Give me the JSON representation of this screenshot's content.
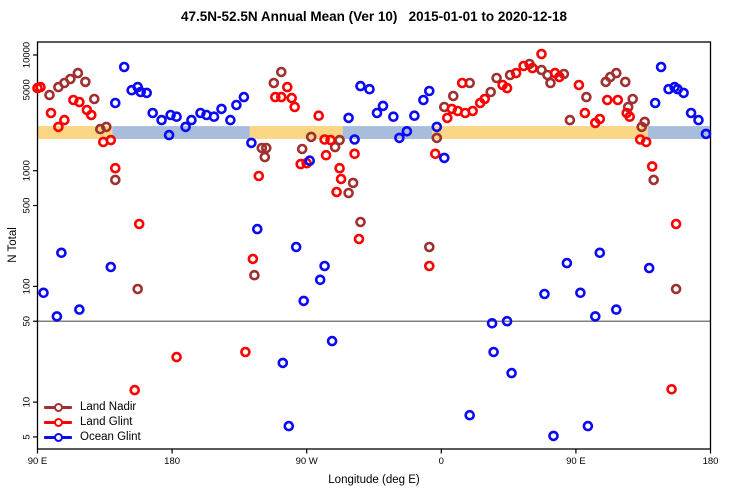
{
  "chart_data": {
    "type": "scatter",
    "title": "47.5N-52.5N Annual Mean (Ver 10)   2015-01-01 to 2020-12-18",
    "xlabel": "Longitude (deg E)",
    "ylabel": "N Total",
    "x_axis": {
      "range_deg": [
        90,
        540
      ],
      "ticks": [
        {
          "deg": 90,
          "label": "90 E"
        },
        {
          "deg": 180,
          "label": "180"
        },
        {
          "deg": 270,
          "label": "90 W"
        },
        {
          "deg": 360,
          "label": "0"
        },
        {
          "deg": 450,
          "label": "90 E"
        },
        {
          "deg": 540,
          "label": "180"
        }
      ]
    },
    "y_axis": {
      "scale": "log",
      "limits": [
        4,
        13000
      ],
      "ticks": [
        {
          "value": 10000,
          "label": "10000"
        },
        {
          "value": 5000,
          "label": "5000"
        },
        {
          "value": 1000,
          "label": "1000"
        },
        {
          "value": 500,
          "label": "500"
        },
        {
          "value": 100,
          "label": "100"
        },
        {
          "value": 50,
          "label": "50"
        },
        {
          "value": 10,
          "label": "10"
        },
        {
          "value": 5,
          "label": "5"
        }
      ]
    },
    "reference_line": {
      "n": 50,
      "color": "#808080"
    },
    "surface_band": {
      "n_range": [
        1880,
        2430
      ],
      "land_color": "#FAD685",
      "ocean_color": "#A8BDDB",
      "segments": [
        {
          "from": 90,
          "to": 140,
          "surface": "land"
        },
        {
          "from": 140,
          "to": 232,
          "surface": "ocean"
        },
        {
          "from": 232,
          "to": 294,
          "surface": "land"
        },
        {
          "from": 294,
          "to": 354,
          "surface": "ocean"
        },
        {
          "from": 354,
          "to": 498,
          "surface": "land"
        },
        {
          "from": 498,
          "to": 540,
          "surface": "ocean"
        }
      ]
    },
    "series": [
      {
        "name": "Land Nadir",
        "color": "#A03030",
        "points": [
          [
            98,
            4510
          ],
          [
            104,
            5280
          ],
          [
            108,
            5730
          ],
          [
            112,
            6200
          ],
          [
            117,
            6980
          ],
          [
            122,
            5850
          ],
          [
            128,
            4170
          ],
          [
            132,
            2290
          ],
          [
            136,
            2390
          ],
          [
            142,
            832
          ],
          [
            248,
            5730
          ],
          [
            253,
            7130
          ],
          [
            240,
            1570
          ],
          [
            243,
            1570
          ],
          [
            242,
            1310
          ],
          [
            267,
            1540
          ],
          [
            273,
            1960
          ],
          [
            289,
            1600
          ],
          [
            292,
            1840
          ],
          [
            298,
            641
          ],
          [
            301,
            784
          ],
          [
            357,
            1920
          ],
          [
            362,
            3550
          ],
          [
            368,
            4420
          ],
          [
            379,
            5730
          ],
          [
            393,
            4790
          ],
          [
            397,
            6330
          ],
          [
            406,
            6710
          ],
          [
            419,
            8360
          ],
          [
            427,
            7420
          ],
          [
            431,
            6710
          ],
          [
            433,
            5730
          ],
          [
            442,
            6850
          ],
          [
            446,
            2740
          ],
          [
            457,
            4330
          ],
          [
            470,
            5860
          ],
          [
            473,
            6450
          ],
          [
            477,
            6980
          ],
          [
            483,
            5860
          ],
          [
            485,
            3550
          ],
          [
            488,
            4170
          ],
          [
            494,
            2390
          ],
          [
            496,
            2640
          ],
          [
            502,
            832
          ],
          [
            157,
            95
          ],
          [
            235,
            125
          ],
          [
            306,
            360
          ],
          [
            352,
            219
          ],
          [
            517,
            95
          ]
        ]
      },
      {
        "name": "Land Glint",
        "color": "#FF0000",
        "points": [
          [
            90,
            5170
          ],
          [
            92,
            5280
          ],
          [
            99,
            3150
          ],
          [
            104,
            2390
          ],
          [
            108,
            2740
          ],
          [
            114,
            4080
          ],
          [
            118,
            3920
          ],
          [
            123,
            3350
          ],
          [
            126,
            3030
          ],
          [
            134,
            1770
          ],
          [
            139,
            1840
          ],
          [
            142,
            1050
          ],
          [
            238,
            900
          ],
          [
            249,
            4330
          ],
          [
            253,
            4330
          ],
          [
            257,
            5280
          ],
          [
            260,
            4240
          ],
          [
            262,
            3550
          ],
          [
            266,
            1140
          ],
          [
            270,
            1160
          ],
          [
            278,
            2990
          ],
          [
            282,
            1860
          ],
          [
            283,
            1360
          ],
          [
            286,
            1840
          ],
          [
            290,
            655
          ],
          [
            292,
            1050
          ],
          [
            293,
            847
          ],
          [
            302,
            1400
          ],
          [
            356,
            1400
          ],
          [
            364,
            2860
          ],
          [
            367,
            3420
          ],
          [
            371,
            3280
          ],
          [
            374,
            5730
          ],
          [
            376,
            3150
          ],
          [
            381,
            3280
          ],
          [
            386,
            3850
          ],
          [
            389,
            4170
          ],
          [
            401,
            5500
          ],
          [
            404,
            5170
          ],
          [
            410,
            6980
          ],
          [
            415,
            8030
          ],
          [
            421,
            7710
          ],
          [
            427,
            10200
          ],
          [
            436,
            6980
          ],
          [
            439,
            6450
          ],
          [
            452,
            5500
          ],
          [
            456,
            3150
          ],
          [
            463,
            2590
          ],
          [
            466,
            2800
          ],
          [
            471,
            4080
          ],
          [
            478,
            4080
          ],
          [
            484,
            3150
          ],
          [
            486,
            2930
          ],
          [
            493,
            1860
          ],
          [
            497,
            1770
          ],
          [
            501,
            1090
          ],
          [
            158,
            346
          ],
          [
            234,
            173
          ],
          [
            305,
            257
          ],
          [
            352,
            150
          ],
          [
            517,
            346
          ],
          [
            155,
            12.7
          ],
          [
            183,
            24.5
          ],
          [
            229,
            27.1
          ],
          [
            514,
            12.9
          ]
        ]
      },
      {
        "name": "Ocean Glint",
        "color": "#0A0AF5",
        "points": [
          [
            142,
            3850
          ],
          [
            148,
            7870
          ],
          [
            153,
            4960
          ],
          [
            157,
            5280
          ],
          [
            159,
            4790
          ],
          [
            163,
            4700
          ],
          [
            167,
            3150
          ],
          [
            173,
            2740
          ],
          [
            178,
            2030
          ],
          [
            179,
            3030
          ],
          [
            183,
            2930
          ],
          [
            189,
            2390
          ],
          [
            193,
            2740
          ],
          [
            199,
            3150
          ],
          [
            203,
            3030
          ],
          [
            208,
            2930
          ],
          [
            213,
            3420
          ],
          [
            219,
            2740
          ],
          [
            223,
            3700
          ],
          [
            228,
            4330
          ],
          [
            233,
            1740
          ],
          [
            272,
            1220
          ],
          [
            298,
            2860
          ],
          [
            302,
            1860
          ],
          [
            306,
            5390
          ],
          [
            312,
            5060
          ],
          [
            317,
            3150
          ],
          [
            321,
            3630
          ],
          [
            328,
            2930
          ],
          [
            332,
            1920
          ],
          [
            337,
            2190
          ],
          [
            342,
            2990
          ],
          [
            348,
            4080
          ],
          [
            352,
            4880
          ],
          [
            357,
            2390
          ],
          [
            362,
            1290
          ],
          [
            503,
            3850
          ],
          [
            507,
            7870
          ],
          [
            512,
            5060
          ],
          [
            516,
            5280
          ],
          [
            518,
            5060
          ],
          [
            522,
            4700
          ],
          [
            527,
            3150
          ],
          [
            532,
            2740
          ],
          [
            537,
            2080
          ],
          [
            94,
            88
          ],
          [
            103,
            55
          ],
          [
            106,
            195
          ],
          [
            118,
            63
          ],
          [
            139,
            147
          ],
          [
            237,
            313
          ],
          [
            254,
            21.8
          ],
          [
            258,
            6.2
          ],
          [
            263,
            219
          ],
          [
            268,
            75
          ],
          [
            279,
            114
          ],
          [
            282,
            150
          ],
          [
            287,
            33.7
          ],
          [
            379,
            7.7
          ],
          [
            394,
            48
          ],
          [
            395,
            27.1
          ],
          [
            404,
            50
          ],
          [
            407,
            17.8
          ],
          [
            429,
            86
          ],
          [
            435,
            5.1
          ],
          [
            444,
            159
          ],
          [
            453,
            88
          ],
          [
            458,
            6.2
          ],
          [
            463,
            55
          ],
          [
            466,
            195
          ],
          [
            477,
            63
          ],
          [
            499,
            144
          ]
        ]
      }
    ],
    "legend": {
      "position": "bottom-left"
    }
  }
}
